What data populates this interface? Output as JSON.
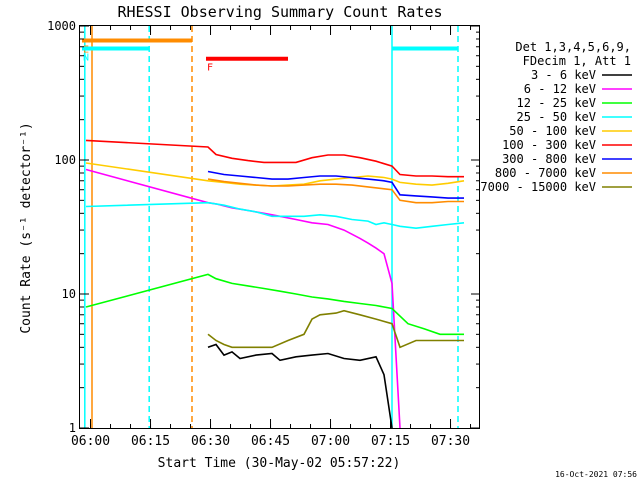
{
  "chart_data": {
    "type": "line",
    "title": "RHESSI Observing Summary Count Rates",
    "xlabel": "Start Time (30-May-02 05:57:22)",
    "ylabel": "Count Rate (s⁻¹ detector⁻¹)",
    "yscale": "log",
    "ylim": [
      1,
      1000
    ],
    "xlim_minutes": [
      0,
      100
    ],
    "x_ticks": [
      "06:00",
      "06:15",
      "06:30",
      "06:45",
      "07:00",
      "07:15",
      "07:30"
    ],
    "x_tick_minutes": [
      2.63,
      17.63,
      32.63,
      47.63,
      62.63,
      77.63,
      92.63
    ],
    "y_ticks": [
      "1",
      "10",
      "100",
      "1000"
    ],
    "y_tick_values": [
      1,
      10,
      100,
      1000
    ],
    "legend": {
      "placement": "right",
      "header": [
        "Det 1,3,4,5,6,9,",
        "FDecim 1, Att 1"
      ]
    },
    "series": [
      {
        "name": "3 - 6 keV",
        "color": "#000000",
        "x": [
          32,
          34,
          36,
          38,
          40,
          44,
          48,
          50,
          54,
          58,
          62,
          66,
          70,
          74,
          76,
          78
        ],
        "y": [
          4,
          4.2,
          3.5,
          3.7,
          3.3,
          3.5,
          3.6,
          3.2,
          3.4,
          3.5,
          3.6,
          3.3,
          3.2,
          3.4,
          2.5,
          1
        ]
      },
      {
        "name": "6 - 12 keV",
        "color": "#ff00ff",
        "x": [
          1.5,
          32,
          34,
          38,
          42,
          46,
          50,
          54,
          58,
          62,
          66,
          70,
          72,
          74,
          76,
          78,
          80
        ],
        "y": [
          85,
          48,
          47,
          44,
          42,
          40,
          38,
          36,
          34,
          33,
          30,
          26,
          24,
          22,
          20,
          12,
          1
        ]
      },
      {
        "name": "12 - 25 keV",
        "color": "#00ff00",
        "x": [
          1.5,
          32,
          34,
          38,
          42,
          46,
          50,
          54,
          58,
          62,
          66,
          70,
          74,
          78,
          82,
          86,
          90,
          94,
          96
        ],
        "y": [
          8,
          14,
          13,
          12,
          11.5,
          11,
          10.5,
          10,
          9.5,
          9.2,
          8.8,
          8.5,
          8.2,
          7.8,
          6,
          5.5,
          5,
          5,
          5
        ]
      },
      {
        "name": "25 - 50 keV",
        "color": "#00ffff",
        "x": [
          1.5,
          32,
          36,
          40,
          44,
          48,
          52,
          56,
          60,
          64,
          68,
          72,
          74,
          76,
          78,
          80,
          84,
          88,
          92,
          96
        ],
        "y": [
          45,
          48,
          46,
          43,
          41,
          38,
          38,
          38,
          39,
          38,
          36,
          35,
          33,
          34,
          33,
          32,
          31,
          32,
          33,
          34
        ]
      },
      {
        "name": "50 - 100 keV",
        "color": "#ffcc00",
        "x": [
          1.5,
          32,
          36,
          40,
          44,
          48,
          52,
          56,
          60,
          64,
          68,
          72,
          76,
          78,
          80,
          84,
          88,
          92,
          96
        ],
        "y": [
          95,
          70,
          68,
          66,
          65,
          64,
          65,
          66,
          70,
          72,
          74,
          76,
          74,
          72,
          68,
          66,
          65,
          67,
          70
        ]
      },
      {
        "name": "100 - 300 keV",
        "color": "#ff0000",
        "x": [
          1.5,
          32,
          34,
          38,
          42,
          46,
          50,
          54,
          58,
          62,
          66,
          70,
          74,
          78,
          80,
          84,
          88,
          92,
          96
        ],
        "y": [
          140,
          125,
          110,
          103,
          99,
          96,
          96,
          96,
          104,
          109,
          109,
          104,
          98,
          90,
          78,
          76,
          76,
          75,
          75
        ]
      },
      {
        "name": "300 - 800 keV",
        "color": "#0000ff",
        "x": [
          32,
          36,
          40,
          44,
          48,
          52,
          56,
          60,
          64,
          68,
          72,
          76,
          78,
          80,
          84,
          88,
          92,
          96
        ],
        "y": [
          82,
          78,
          76,
          74,
          72,
          72,
          74,
          76,
          76,
          74,
          72,
          70,
          68,
          55,
          54,
          53,
          52,
          52
        ]
      },
      {
        "name": "800 - 7000 keV",
        "color": "#ff8c00",
        "x": [
          32,
          36,
          40,
          44,
          48,
          52,
          56,
          60,
          64,
          68,
          72,
          76,
          78,
          80,
          84,
          88,
          92,
          96
        ],
        "y": [
          72,
          69,
          67,
          65,
          64,
          64,
          65,
          66,
          66,
          65,
          63,
          61,
          60,
          50,
          48,
          48,
          49,
          49
        ]
      },
      {
        "name": "7000 - 15000 keV",
        "color": "#808000",
        "x": [
          32,
          34,
          36,
          38,
          40,
          44,
          48,
          52,
          56,
          58,
          60,
          64,
          66,
          70,
          74,
          78,
          80,
          84,
          88,
          92,
          96
        ],
        "y": [
          5,
          4.5,
          4.2,
          4,
          4,
          4,
          4,
          4.5,
          5,
          6.5,
          7,
          7.2,
          7.5,
          7,
          6.5,
          6,
          4,
          4.5,
          4.5,
          4.5,
          4.5
        ]
      }
    ],
    "vertical_lines": [
      {
        "minute": 1.2,
        "color": "#00ffff",
        "style": "solid"
      },
      {
        "minute": 3.0,
        "color": "#ff8c00",
        "style": "solid"
      },
      {
        "minute": 17.3,
        "color": "#00ffff",
        "style": "dashed"
      },
      {
        "minute": 28.0,
        "color": "#ff8c00",
        "style": "dashed"
      },
      {
        "minute": 78.0,
        "color": "#00ffff",
        "style": "solid"
      },
      {
        "minute": 94.5,
        "color": "#00ffff",
        "style": "dashed"
      }
    ],
    "flag_bars": [
      {
        "label": "E",
        "color": "#ff8c00",
        "x0": 0.5,
        "x1": 28,
        "y": 780
      },
      {
        "label": "N",
        "color": "#00ffff",
        "x0": 0.5,
        "x1": 17.3,
        "y": 680
      },
      {
        "label": "F",
        "color": "#ff0000",
        "x0": 31.5,
        "x1": 52,
        "y": 570
      },
      {
        "label": "",
        "color": "#00ffff",
        "x0": 78,
        "x1": 94.5,
        "y": 680
      }
    ],
    "timestamp": "16-Oct-2021 07:56"
  }
}
